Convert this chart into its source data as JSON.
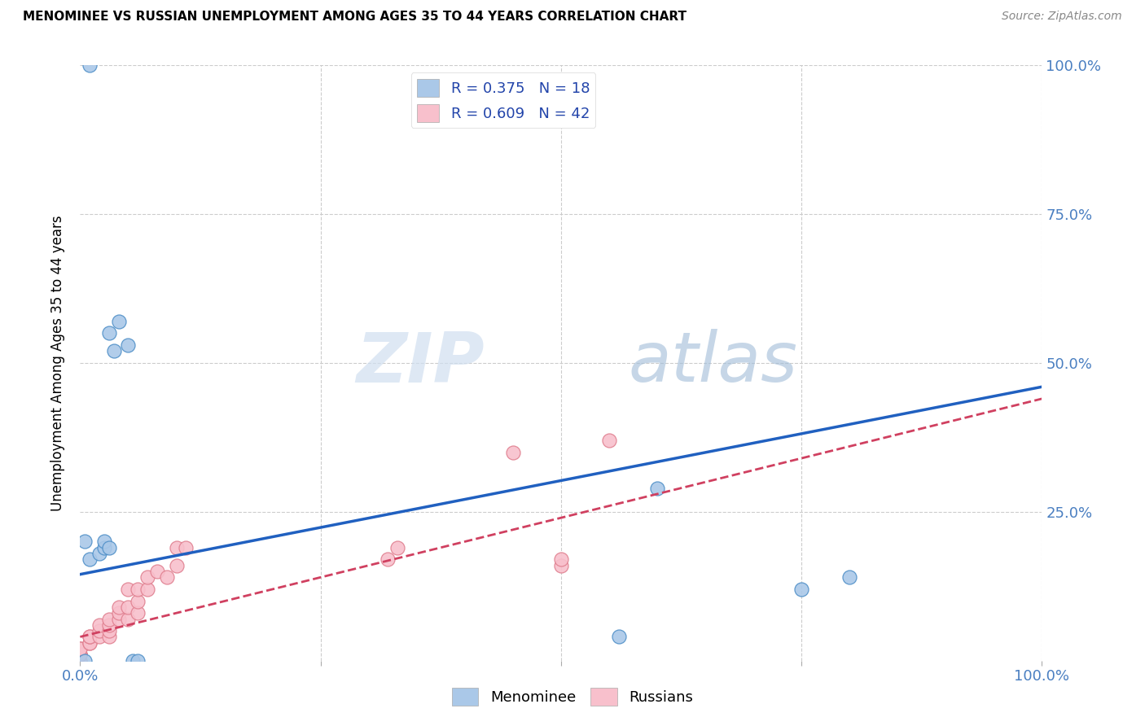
{
  "title": "MENOMINEE VS RUSSIAN UNEMPLOYMENT AMONG AGES 35 TO 44 YEARS CORRELATION CHART",
  "source": "Source: ZipAtlas.com",
  "ylabel": "Unemployment Among Ages 35 to 44 years",
  "xlim": [
    0,
    1.0
  ],
  "ylim": [
    0,
    1.0
  ],
  "xticks": [
    0.0,
    0.25,
    0.5,
    0.75,
    1.0
  ],
  "xticklabels": [
    "0.0%",
    "",
    "",
    "",
    "100.0%"
  ],
  "yticks": [
    0.0,
    0.25,
    0.5,
    0.75,
    1.0
  ],
  "yticklabels": [
    "",
    "25.0%",
    "50.0%",
    "75.0%",
    "100.0%"
  ],
  "menominee_color": "#aac8e8",
  "menominee_edge": "#5090c8",
  "russian_color": "#f8c0cc",
  "russian_edge": "#e08090",
  "menominee_line_color": "#2060c0",
  "russian_line_color": "#d04060",
  "legend_R_menominee": "R = 0.375",
  "legend_N_menominee": "N = 18",
  "legend_R_russian": "R = 0.609",
  "legend_N_russian": "N = 42",
  "watermark_zip": "ZIP",
  "watermark_atlas": "atlas",
  "background_color": "#ffffff",
  "grid_color": "#cccccc",
  "menominee_x": [
    0.005,
    0.01,
    0.02,
    0.025,
    0.025,
    0.03,
    0.04,
    0.05,
    0.055,
    0.06,
    0.01,
    0.03,
    0.035,
    0.56,
    0.6,
    0.75,
    0.8,
    0.005
  ],
  "menominee_y": [
    0.0,
    0.17,
    0.18,
    0.19,
    0.2,
    0.19,
    0.57,
    0.53,
    0.0,
    0.0,
    1.0,
    0.55,
    0.52,
    0.04,
    0.29,
    0.12,
    0.14,
    0.2
  ],
  "russian_x": [
    0.0,
    0.0,
    0.0,
    0.0,
    0.0,
    0.0,
    0.0,
    0.0,
    0.0,
    0.01,
    0.01,
    0.01,
    0.01,
    0.02,
    0.02,
    0.02,
    0.03,
    0.03,
    0.03,
    0.03,
    0.04,
    0.04,
    0.04,
    0.05,
    0.05,
    0.05,
    0.06,
    0.06,
    0.06,
    0.07,
    0.07,
    0.08,
    0.09,
    0.1,
    0.1,
    0.11,
    0.32,
    0.33,
    0.45,
    0.5,
    0.5,
    0.55
  ],
  "russian_y": [
    0.0,
    0.0,
    0.01,
    0.01,
    0.01,
    0.01,
    0.02,
    0.02,
    0.02,
    0.03,
    0.03,
    0.04,
    0.04,
    0.04,
    0.05,
    0.06,
    0.04,
    0.05,
    0.06,
    0.07,
    0.07,
    0.08,
    0.09,
    0.07,
    0.09,
    0.12,
    0.08,
    0.1,
    0.12,
    0.12,
    0.14,
    0.15,
    0.14,
    0.16,
    0.19,
    0.19,
    0.17,
    0.19,
    0.35,
    0.16,
    0.17,
    0.37
  ],
  "menominee_line_x0": 0.0,
  "menominee_line_y0": 0.145,
  "menominee_line_x1": 1.0,
  "menominee_line_y1": 0.46,
  "russian_line_x0": 0.0,
  "russian_line_y0": 0.04,
  "russian_line_x1": 1.0,
  "russian_line_y1": 0.44
}
